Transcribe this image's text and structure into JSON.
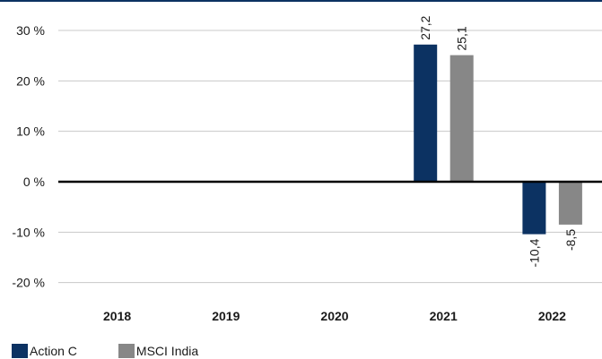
{
  "chart_data": {
    "type": "bar",
    "categories": [
      "2018",
      "2019",
      "2020",
      "2021",
      "2022"
    ],
    "series": [
      {
        "name": "Action C",
        "color": "#0c3262",
        "values": [
          null,
          null,
          null,
          27.2,
          -10.4
        ],
        "labels": [
          "",
          "",
          "",
          "27,2",
          "-10,4"
        ]
      },
      {
        "name": "MSCI India",
        "color": "#878787",
        "values": [
          null,
          null,
          null,
          25.1,
          -8.5
        ],
        "labels": [
          "",
          "",
          "",
          "25,1",
          "-8,5"
        ]
      }
    ],
    "ylim": [
      -20,
      30
    ],
    "yticks": [
      30,
      20,
      10,
      0,
      -10,
      -20
    ],
    "ytick_labels": [
      "30 %",
      "20 %",
      "10 %",
      "0 %",
      "-10 %",
      "-20 %"
    ],
    "grid": true,
    "legend": "bottom-left",
    "top_rule_color": "#0c3262"
  }
}
